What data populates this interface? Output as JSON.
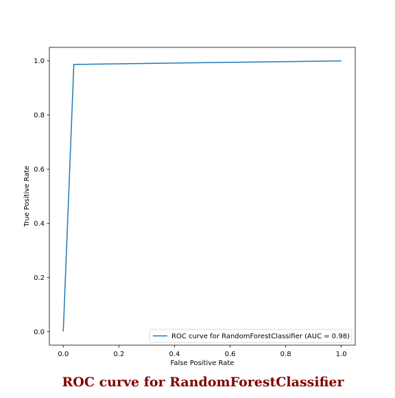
{
  "chart_data": {
    "type": "line",
    "title": "ROC curve for RandomForestClassifier",
    "title_color": "#800000",
    "xlabel": "False Positive Rate",
    "ylabel": "True Positive Rate",
    "xlim": [
      -0.05,
      1.05
    ],
    "ylim": [
      -0.05,
      1.05
    ],
    "x_ticks": [
      0.0,
      0.2,
      0.4,
      0.6,
      0.8,
      1.0
    ],
    "y_ticks": [
      0.0,
      0.2,
      0.4,
      0.6,
      0.8,
      1.0
    ],
    "x_tick_labels": [
      "0.0",
      "0.2",
      "0.4",
      "0.6",
      "0.8",
      "1.0"
    ],
    "y_tick_labels": [
      "0.0",
      "0.2",
      "0.4",
      "0.6",
      "0.8",
      "1.0"
    ],
    "grid": false,
    "legend_position": "lower right",
    "series": [
      {
        "name": "ROC curve for RandomForestClassifier (AUC = 0.98)",
        "color": "#1f77b4",
        "x": [
          0.0,
          0.038,
          1.0
        ],
        "y": [
          0.0,
          0.987,
          1.0
        ]
      }
    ]
  }
}
